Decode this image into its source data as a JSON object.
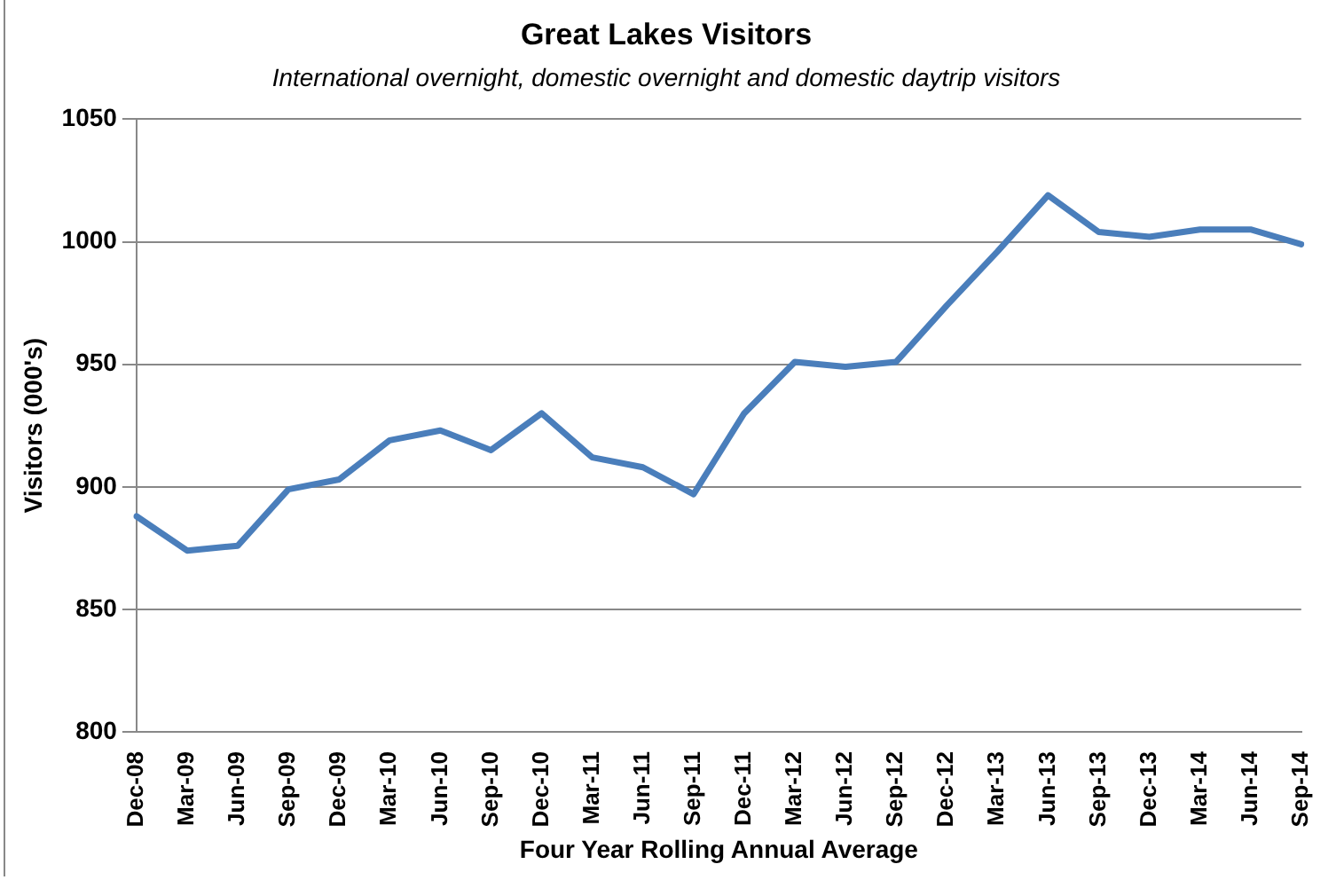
{
  "chart_data": {
    "type": "line",
    "title": "Great Lakes Visitors",
    "subtitle": "International overnight, domestic overnight and domestic daytrip visitors",
    "xlabel": "Four Year Rolling Annual Average",
    "ylabel": "Visitors (000's)",
    "categories": [
      "Dec-08",
      "Mar-09",
      "Jun-09",
      "Sep-09",
      "Dec-09",
      "Mar-10",
      "Jun-10",
      "Sep-10",
      "Dec-10",
      "Mar-11",
      "Jun-11",
      "Sep-11",
      "Dec-11",
      "Mar-12",
      "Jun-12",
      "Sep-12",
      "Dec-12",
      "Mar-13",
      "Jun-13",
      "Sep-13",
      "Dec-13",
      "Mar-14",
      "Jun-14",
      "Sep-14"
    ],
    "series": [
      {
        "color": "#4a7ebb",
        "values": [
          888,
          874,
          876,
          899,
          903,
          919,
          923,
          915,
          930,
          912,
          908,
          897,
          930,
          951,
          949,
          951,
          974,
          996,
          1019,
          1004,
          1002,
          1005,
          1005,
          999
        ]
      }
    ],
    "ylim": [
      800,
      1050
    ],
    "yticks": [
      800,
      850,
      900,
      950,
      1000,
      1050
    ],
    "grid": "y",
    "legend": false,
    "marker": "none",
    "line_style": "solid"
  }
}
